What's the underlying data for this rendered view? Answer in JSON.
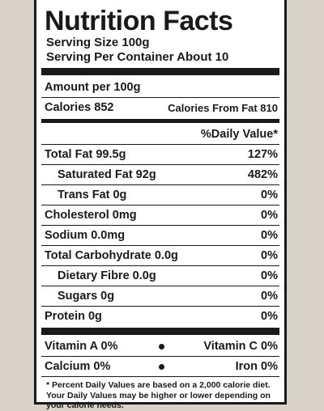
{
  "title": "Nutrition Facts",
  "serving_size": "Serving Size 100g",
  "servings_per_container": "Serving Per Container About 10",
  "amount_per": "Amount per 100g",
  "calories": "Calories 852",
  "calories_from_fat": "Calories From Fat 810",
  "daily_value_header": "%Daily Value*",
  "nutrients": [
    {
      "label": "Total Fat 99.5g",
      "dv": "127%"
    },
    {
      "label": "Saturated Fat 92g",
      "dv": "482%"
    },
    {
      "label": "Trans Fat 0g",
      "dv": "0%"
    },
    {
      "label": "Cholesterol 0mg",
      "dv": "0%"
    },
    {
      "label": "Sodium 0.0mg",
      "dv": "0%"
    },
    {
      "label": "Total Carbohydrate 0.0g",
      "dv": "0%"
    },
    {
      "label": "Dietary Fibre 0.0g",
      "dv": "0%"
    },
    {
      "label": "Sugars 0g",
      "dv": "0%"
    },
    {
      "label": "Protein 0g",
      "dv": "0%"
    }
  ],
  "vitamins": [
    {
      "left": "Vitamin A 0%",
      "right": "Vitamin C 0%"
    },
    {
      "left": "Calcium 0%",
      "right": "Iron 0%"
    }
  ],
  "footnote": "* Percent Daily Values are based on a 2,000 calorie diet. Your Daily Values may be higher or lower depending on your calorie needs."
}
